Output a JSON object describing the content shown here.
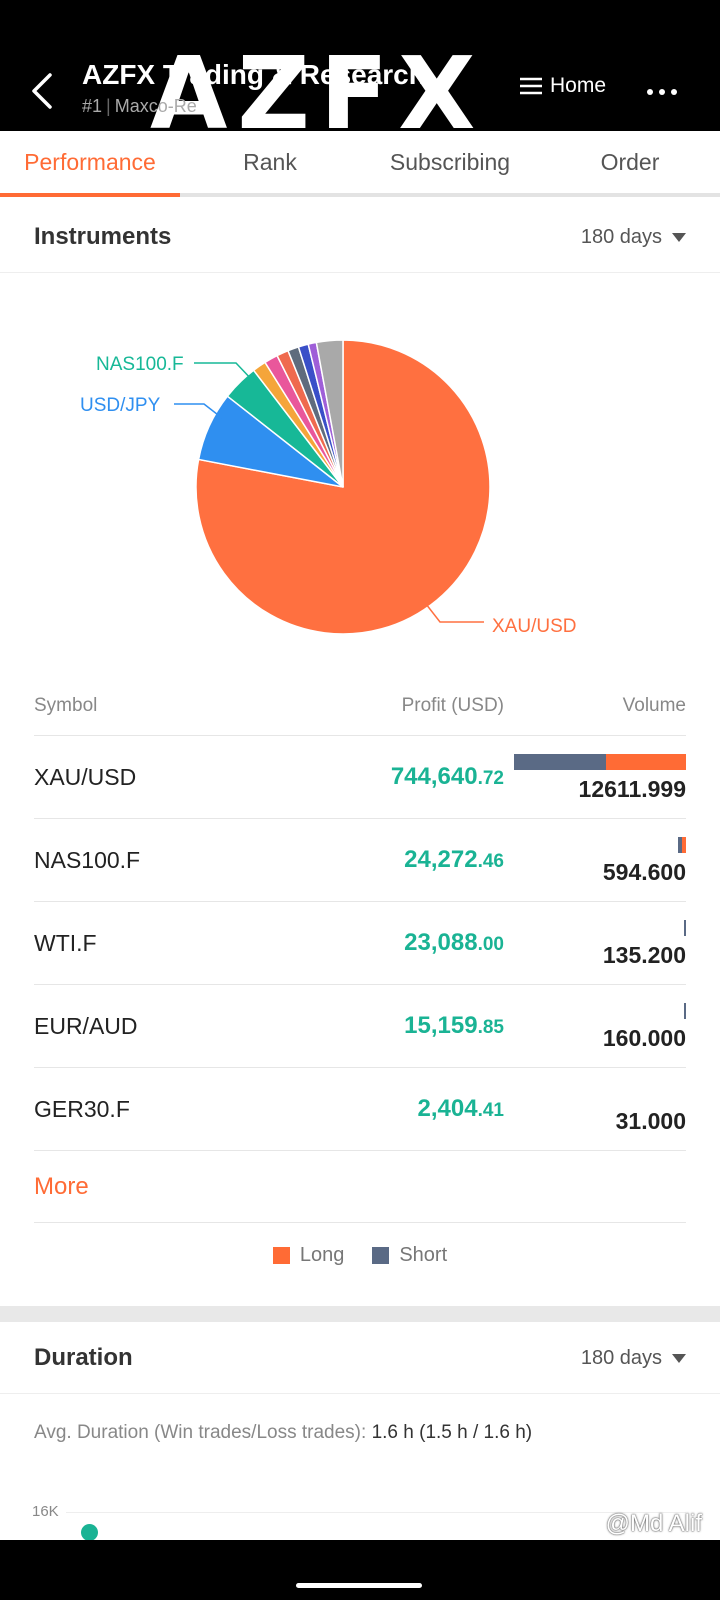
{
  "header": {
    "title": "AZFX Trading & Research",
    "rank": "#1",
    "author": "Maxco-Re",
    "watermark": "AZFX",
    "home_label": "Home"
  },
  "tabs": [
    {
      "label": "Performance",
      "active": true
    },
    {
      "label": "Rank",
      "active": false
    },
    {
      "label": "Subscribing",
      "active": false
    },
    {
      "label": "Order",
      "active": false
    }
  ],
  "instruments": {
    "title": "Instruments",
    "range": "180 days",
    "pie_labels": {
      "xau": "XAU/USD",
      "nas": "NAS100.F",
      "usdjpy": "USD/JPY"
    },
    "columns": {
      "symbol": "Symbol",
      "profit": "Profit (USD)",
      "volume": "Volume"
    },
    "rows": [
      {
        "symbol": "XAU/USD",
        "profit_int": "744,640",
        "profit_dec": ".72",
        "volume": "12611.999",
        "short_frac": 0.537,
        "long_frac": 0.463,
        "bar_frac": 1.0
      },
      {
        "symbol": "NAS100.F",
        "profit_int": "24,272",
        "profit_dec": ".46",
        "volume": "594.600",
        "short_frac": 0.5,
        "long_frac": 0.5,
        "bar_frac": 0.047
      },
      {
        "symbol": "WTI.F",
        "profit_int": "23,088",
        "profit_dec": ".00",
        "volume": "135.200",
        "short_frac": 1.0,
        "long_frac": 0.0,
        "bar_frac": 0.011
      },
      {
        "symbol": "EUR/AUD",
        "profit_int": "15,159",
        "profit_dec": ".85",
        "volume": "160.000",
        "short_frac": 1.0,
        "long_frac": 0.0,
        "bar_frac": 0.013
      },
      {
        "symbol": "GER30.F",
        "profit_int": "2,404",
        "profit_dec": ".41",
        "volume": "31.000",
        "short_frac": 1.0,
        "long_frac": 0.0,
        "bar_frac": 0.0
      }
    ],
    "more_label": "More",
    "legend": {
      "long": "Long",
      "short": "Short"
    }
  },
  "colors": {
    "long": "#ff6b35",
    "short": "#5a6a85",
    "profit": "#1ab394",
    "accent": "#ff6b35"
  },
  "duration": {
    "title": "Duration",
    "range": "180 days",
    "avg_label": "Avg. Duration (Win trades/Loss trades):",
    "avg_value": "1.6 h (1.5 h / 1.6 h)",
    "axis_top": "16K"
  },
  "credit": "@Md Alif",
  "chart_data": {
    "type": "pie",
    "title": "",
    "labels": [
      "XAU/USD",
      "USD/JPY",
      "NAS100.F",
      "",
      "",
      "",
      "",
      "",
      "",
      ""
    ],
    "values": [
      78.0,
      7.6,
      4.0,
      1.5,
      1.5,
      1.3,
      1.2,
      1.1,
      0.9,
      2.9
    ],
    "colors": [
      "#ff7040",
      "#2f8ff0",
      "#17b897",
      "#f5a53a",
      "#e9579b",
      "#ef6a4e",
      "#5f6b7d",
      "#3a4fc8",
      "#9f5fd8",
      "#a9a9a9"
    ]
  }
}
